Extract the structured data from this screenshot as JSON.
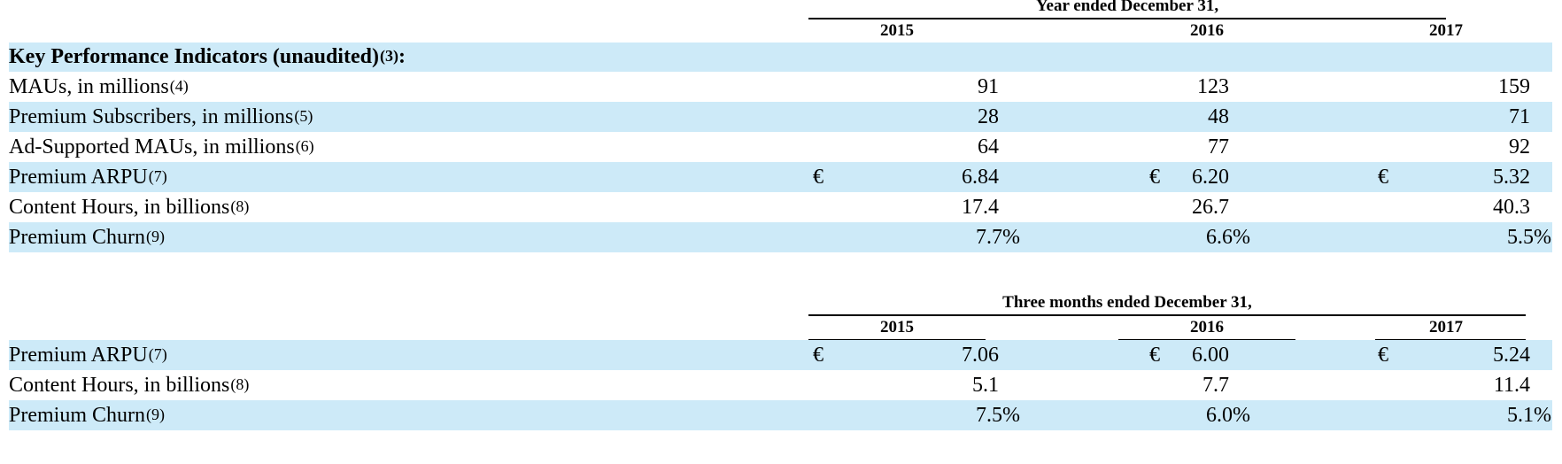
{
  "annual": {
    "span_header": "Year ended December 31,",
    "years": [
      "2015",
      "2016",
      "2017"
    ],
    "section_title": "Key Performance Indicators (unaudited)",
    "section_note": "(3)",
    "colon": ":",
    "rows": [
      {
        "label": "MAUs, in millions",
        "note": "(4)",
        "currency": [
          "",
          "",
          ""
        ],
        "values": [
          "91",
          "123",
          "159"
        ]
      },
      {
        "label": "Premium Subscribers, in millions",
        "note": "(5)",
        "currency": [
          "",
          "",
          ""
        ],
        "values": [
          "28",
          "48",
          "71"
        ]
      },
      {
        "label": "Ad-Supported MAUs, in millions",
        "note": "(6)",
        "currency": [
          "",
          "",
          ""
        ],
        "values": [
          "64",
          "77",
          "92"
        ]
      },
      {
        "label": "Premium ARPU",
        "note": "(7)",
        "currency": [
          "€",
          "€",
          "€"
        ],
        "values": [
          "6.84",
          "6.20",
          "5.32"
        ]
      },
      {
        "label": "Content Hours, in billions",
        "note": "(8)",
        "currency": [
          "",
          "",
          ""
        ],
        "values": [
          "17.4",
          "26.7",
          "40.3"
        ]
      },
      {
        "label": "Premium Churn",
        "note": "(9)",
        "currency": [
          "",
          "",
          ""
        ],
        "values": [
          "7.7%",
          "6.6%",
          "5.5%"
        ]
      }
    ]
  },
  "quarterly": {
    "span_header": "Three months ended December 31,",
    "years": [
      "2015",
      "2016",
      "2017"
    ],
    "rows": [
      {
        "label": "Premium ARPU",
        "note": "(7)",
        "currency": [
          "€",
          "€",
          "€"
        ],
        "values": [
          "7.06",
          "6.00",
          "5.24"
        ]
      },
      {
        "label": "Content Hours, in billions",
        "note": "(8)",
        "currency": [
          "",
          "",
          ""
        ],
        "values": [
          "5.1",
          "7.7",
          "11.4"
        ]
      },
      {
        "label": "Premium Churn",
        "note": "(9)",
        "currency": [
          "",
          "",
          ""
        ],
        "values": [
          "7.5%",
          "6.0%",
          "5.1%"
        ]
      }
    ]
  },
  "colors": {
    "band": "#cdeaf8",
    "text": "#000000"
  }
}
